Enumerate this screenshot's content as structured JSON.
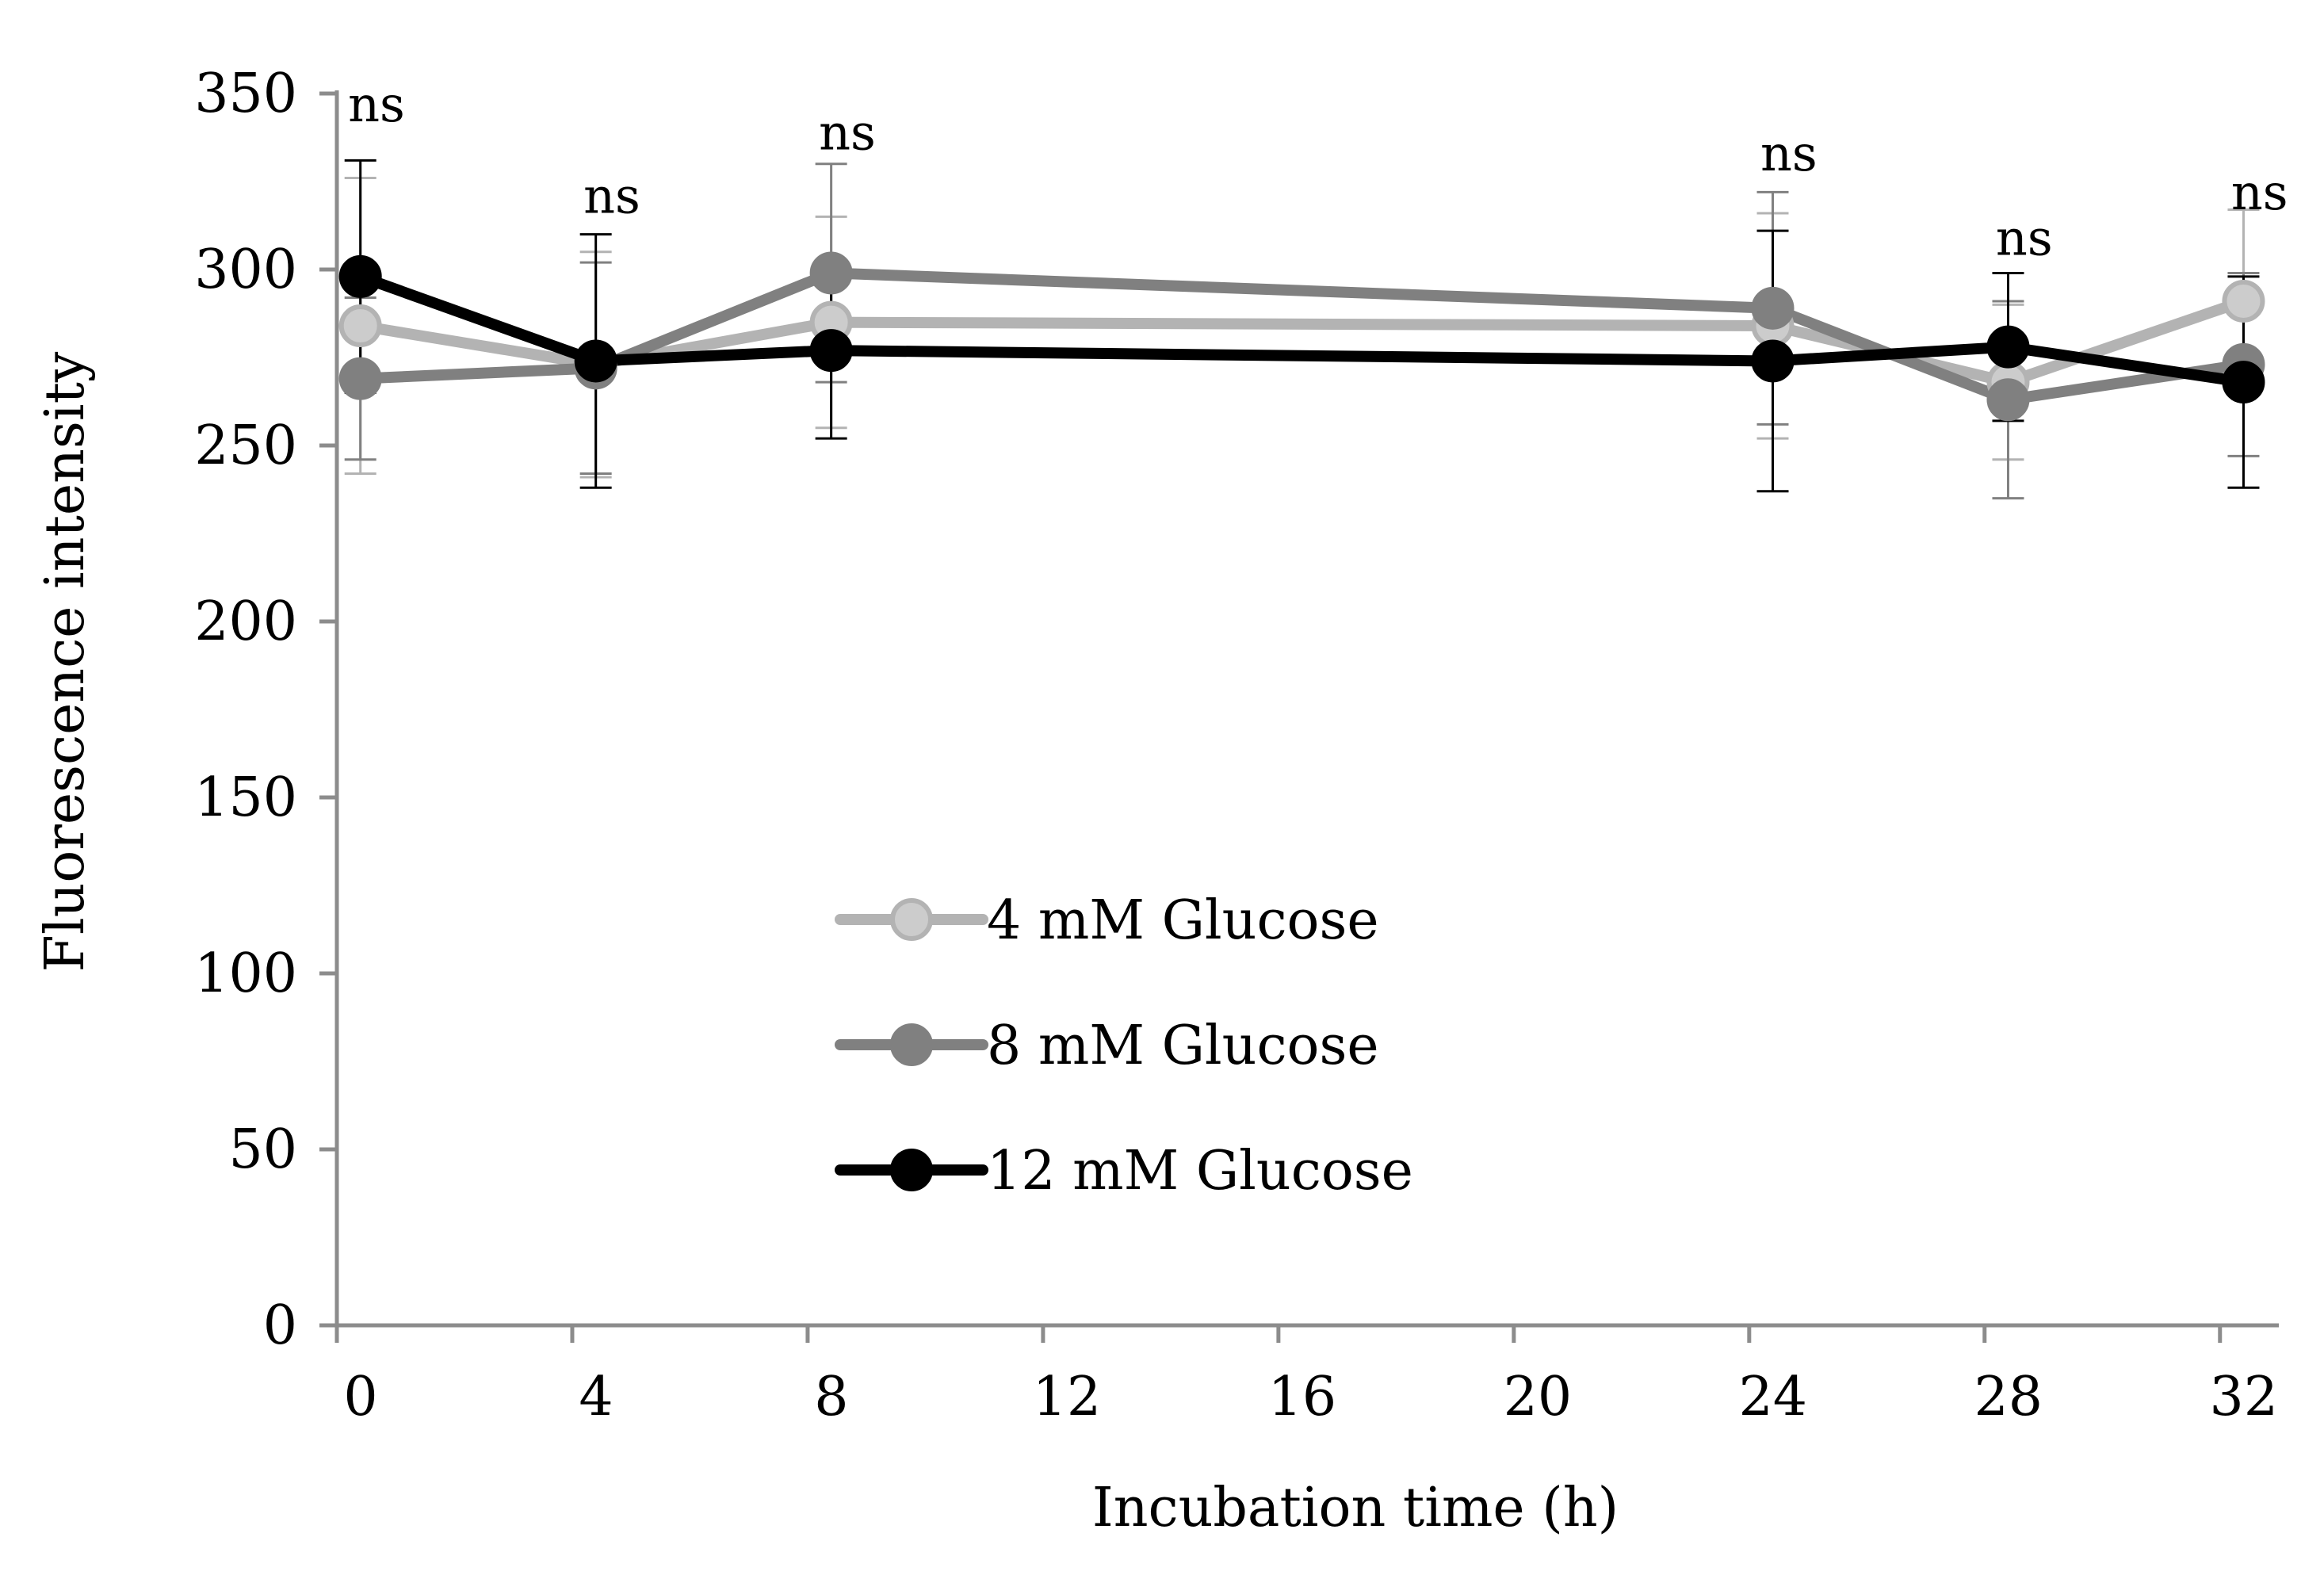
{
  "chart_data": {
    "type": "line",
    "title": "",
    "xlabel": "Incubation time (h)",
    "ylabel": "Fluorescence intensity",
    "xlim": [
      0,
      33
    ],
    "ylim": [
      0,
      350
    ],
    "x_ticks": [
      0,
      4,
      8,
      12,
      16,
      20,
      24,
      28,
      32
    ],
    "y_ticks": [
      0,
      50,
      100,
      150,
      200,
      250,
      300,
      350
    ],
    "grid": false,
    "legend_position": "center",
    "annotations": [
      {
        "x": 0,
        "y": 350,
        "text": "ns"
      },
      {
        "x": 4,
        "y": 324,
        "text": "ns"
      },
      {
        "x": 8,
        "y": 342,
        "text": "ns"
      },
      {
        "x": 24,
        "y": 336,
        "text": "ns"
      },
      {
        "x": 28,
        "y": 312,
        "text": "ns"
      },
      {
        "x": 32,
        "y": 325,
        "text": "ns"
      }
    ],
    "series": [
      {
        "name": "4 mM Glucose",
        "color": "#b3b3b3",
        "x": [
          0.4,
          4.4,
          8.4,
          24.4,
          28.4,
          32.4
        ],
        "values": [
          284,
          273,
          285,
          284,
          268,
          291
        ],
        "error": [
          42,
          32,
          30,
          32,
          22,
          26
        ]
      },
      {
        "name": "8 mM Glucose",
        "color": "#808080",
        "x": [
          0.4,
          4.4,
          8.4,
          24.4,
          28.4,
          32.4
        ],
        "values": [
          269,
          272,
          299,
          289,
          263,
          273
        ],
        "error": [
          23,
          30,
          31,
          33,
          28,
          26
        ]
      },
      {
        "name": "12 mM Glucose",
        "color": "#000000",
        "x": [
          0.4,
          4.4,
          8.4,
          24.4,
          28.4,
          32.4
        ],
        "values": [
          298,
          274,
          277,
          274,
          278,
          268
        ],
        "error": [
          33,
          36,
          25,
          37,
          21,
          30
        ]
      }
    ]
  }
}
